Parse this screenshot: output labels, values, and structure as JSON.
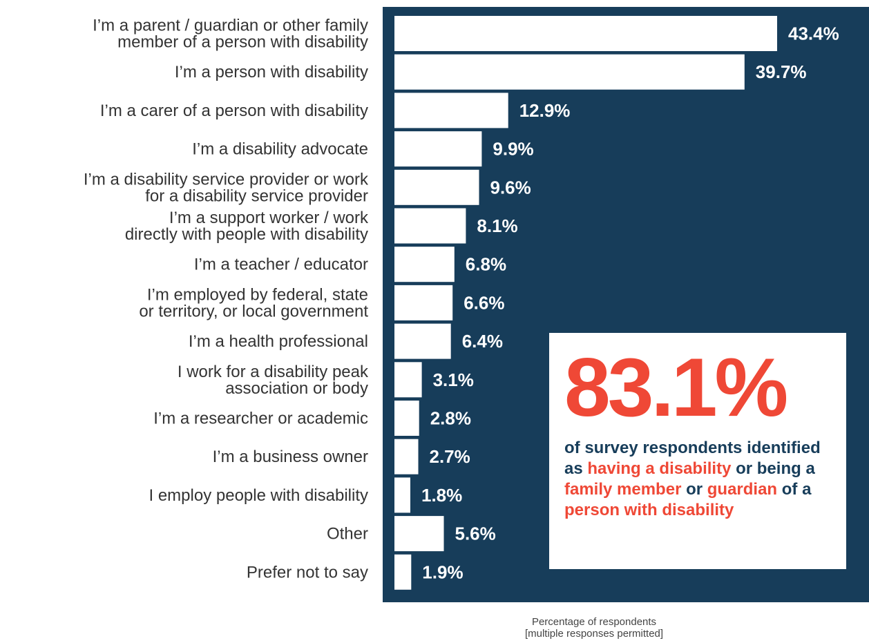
{
  "colors": {
    "panel": "#173d5a",
    "bar": "#ffffff",
    "accent": "#ef4836",
    "label_text": "#333333"
  },
  "chart_data": {
    "type": "bar",
    "orientation": "horizontal",
    "categories": [
      [
        "I’m a parent / guardian or other family",
        "member of a person with disability"
      ],
      [
        "I’m a person with disability"
      ],
      [
        "I’m a carer of a person with disability"
      ],
      [
        "I’m a disability advocate"
      ],
      [
        "I’m a disability service provider or work",
        "for a disability service provider"
      ],
      [
        "I’m a support worker / work",
        "directly with people with disability"
      ],
      [
        "I’m a teacher / educator"
      ],
      [
        "I’m employed by federal, state",
        "or territory, or local government"
      ],
      [
        "I’m a health professional"
      ],
      [
        "I work for a disability peak",
        "association or body"
      ],
      [
        "I’m a researcher or academic"
      ],
      [
        "I’m a business owner"
      ],
      [
        "I employ people with disability"
      ],
      [
        "Other"
      ],
      [
        "Prefer not to say"
      ]
    ],
    "values": [
      43.4,
      39.7,
      12.9,
      9.9,
      9.6,
      8.1,
      6.8,
      6.6,
      6.4,
      3.1,
      2.8,
      2.7,
      1.8,
      5.6,
      1.9
    ],
    "value_labels": [
      "43.4%",
      "39.7%",
      "12.9%",
      "9.9%",
      "9.6%",
      "8.1%",
      "6.8%",
      "6.6%",
      "6.4%",
      "3.1%",
      "2.8%",
      "2.7%",
      "1.8%",
      "5.6%",
      "1.9%"
    ],
    "xlabel": [
      "Percentage of respondents",
      "[multiple responses permitted]"
    ],
    "xlim": [
      0,
      43.4
    ],
    "grid": false
  },
  "callout": {
    "big_number": "83.1%",
    "segments": [
      {
        "text": "of survey respondents identified as ",
        "highlight": false
      },
      {
        "text": "having a disability",
        "highlight": true
      },
      {
        "text": " or being a ",
        "highlight": false
      },
      {
        "text": "family member",
        "highlight": true
      },
      {
        "text": " or ",
        "highlight": false
      },
      {
        "text": "guardian",
        "highlight": true
      },
      {
        "text": " of a ",
        "highlight": false
      },
      {
        "text": "person with disability",
        "highlight": true
      }
    ]
  }
}
